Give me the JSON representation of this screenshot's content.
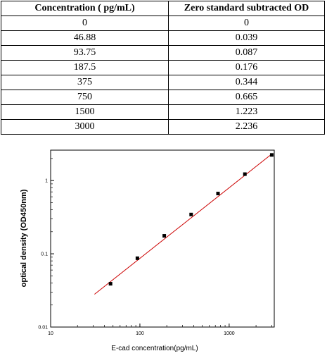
{
  "chart_data": [
    {
      "type": "table",
      "columns": [
        "Concentration ( pg/mL)",
        "Zero standard subtracted OD"
      ],
      "rows": [
        [
          "0",
          "0"
        ],
        [
          "46.88",
          "0.039"
        ],
        [
          "93.75",
          "0.087"
        ],
        [
          "187.5",
          "0.176"
        ],
        [
          "375",
          "0.344"
        ],
        [
          "750",
          "0.665"
        ],
        [
          "1500",
          "1.223"
        ],
        [
          "3000",
          "2.236"
        ]
      ]
    },
    {
      "type": "scatter",
      "title": "",
      "xlabel": "E-cad concentration(pg/mL)",
      "ylabel": "optical density (OD450nm)",
      "x_scale": "log",
      "y_scale": "log",
      "xlim": [
        10,
        3200
      ],
      "ylim": [
        0.01,
        2.6
      ],
      "x_ticks": [
        10,
        100,
        1000
      ],
      "x_tick_labels": [
        "10",
        "100",
        "1000"
      ],
      "y_ticks": [
        0.01,
        0.1,
        1
      ],
      "y_tick_labels": [
        "0.01",
        "0.1",
        "1"
      ],
      "grid": false,
      "points": {
        "x": [
          46.88,
          93.75,
          187.5,
          375,
          750,
          1500,
          3000
        ],
        "y": [
          0.039,
          0.087,
          0.176,
          0.344,
          0.665,
          1.223,
          2.236
        ],
        "color": "#000000"
      },
      "fit_line": {
        "x": [
          31,
          3000
        ],
        "y": [
          0.028,
          2.3
        ],
        "color": "#cc0000"
      }
    }
  ]
}
